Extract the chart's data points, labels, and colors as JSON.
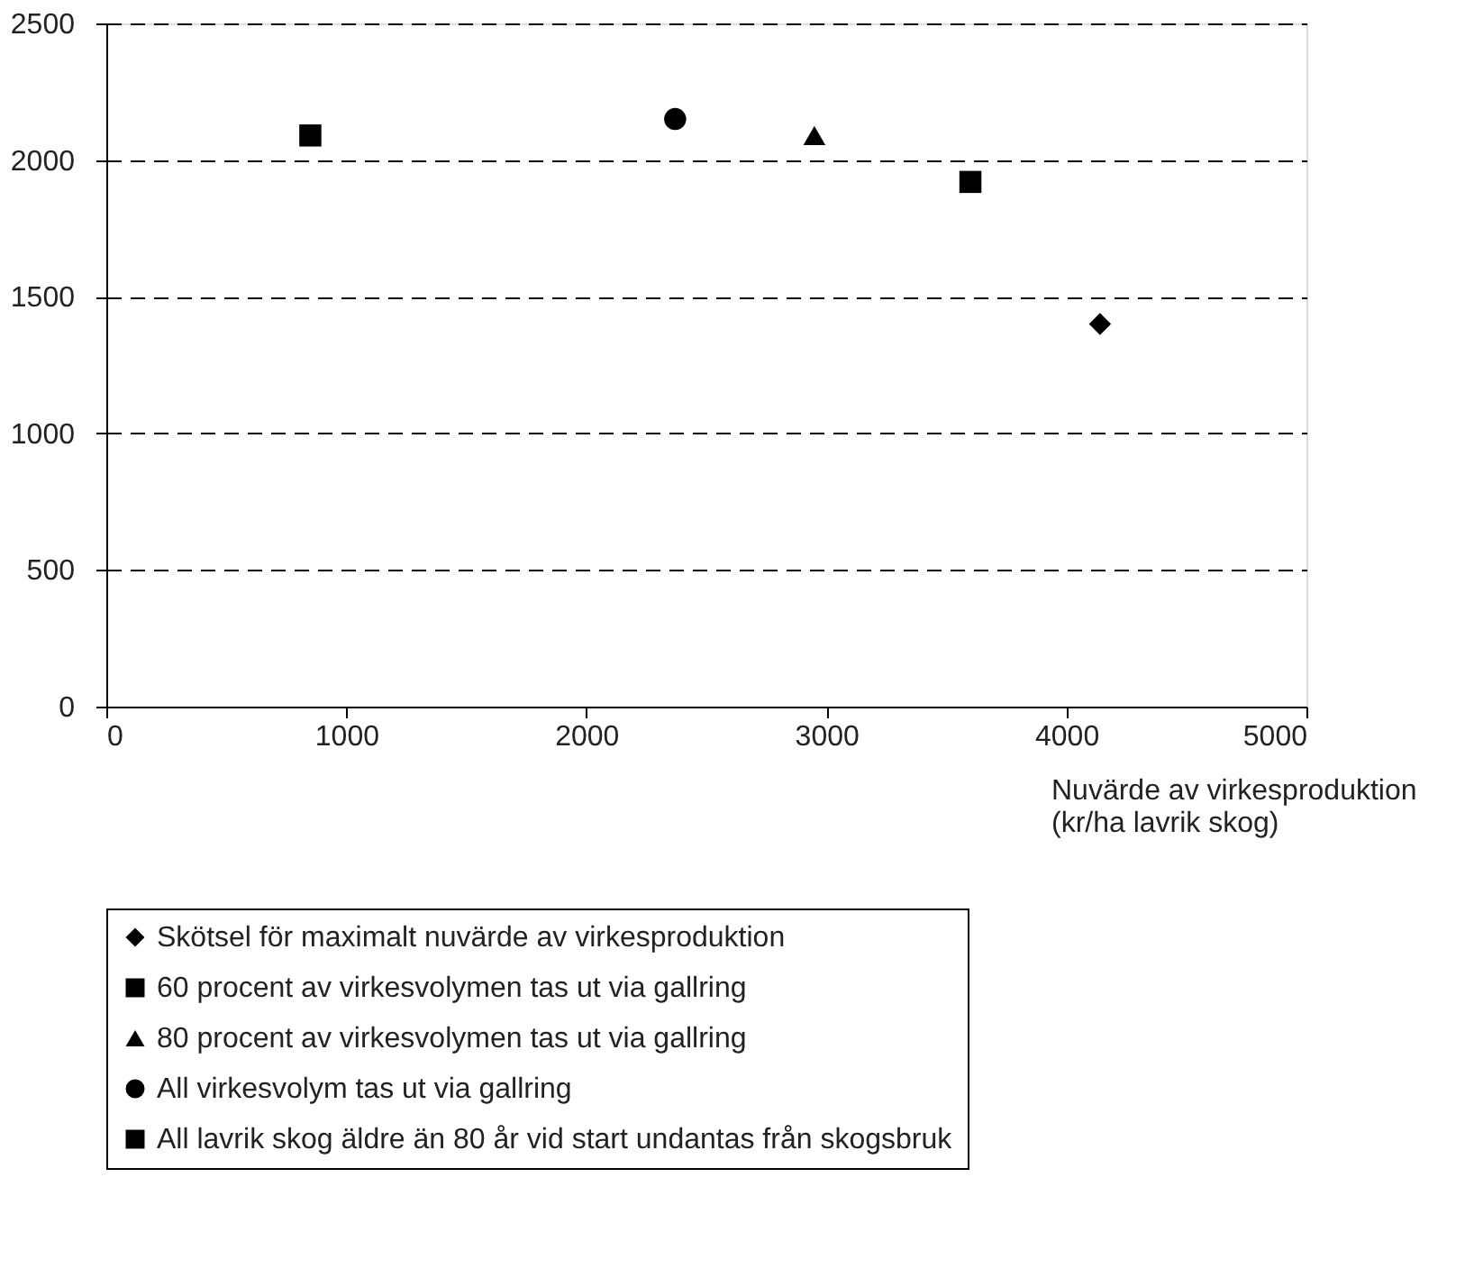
{
  "chart_data": {
    "type": "scatter",
    "xlabel": "Nuvärde av virkesproduktion\n(kr/ha lavrik skog)",
    "xlim": [
      0,
      5000
    ],
    "xticks": [
      0,
      1000,
      2000,
      3000,
      4000,
      5000
    ],
    "ylim": [
      0,
      2500
    ],
    "yticks": [
      0,
      500,
      1000,
      1500,
      2000,
      2500
    ],
    "grid": "y",
    "legend": "bottom",
    "series": [
      {
        "name": "Skötsel för maximalt nuvärde av virkesproduktion",
        "color": "#000000",
        "marker": "diamond",
        "x": [
          4140
        ],
        "values": [
          1400
        ]
      },
      {
        "name": "60 procent av virkesvolymen tas ut via gallring",
        "color": "#000000",
        "marker": "square",
        "x": [
          3600
        ],
        "values": [
          1920
        ]
      },
      {
        "name": "80 procent av virkesvolymen tas ut via gallring",
        "color": "#000000",
        "marker": "triangle",
        "x": [
          2950
        ],
        "values": [
          2090
        ]
      },
      {
        "name": "All virkesvolym tas ut via gallring",
        "color": "#000000",
        "marker": "circle",
        "x": [
          2370
        ],
        "values": [
          2150
        ]
      },
      {
        "name": "All lavrik skog äldre än 80 år vid start undantas från skogsbruk",
        "color": "#000000",
        "marker": "square",
        "x": [
          850
        ],
        "values": [
          2090
        ]
      }
    ]
  }
}
